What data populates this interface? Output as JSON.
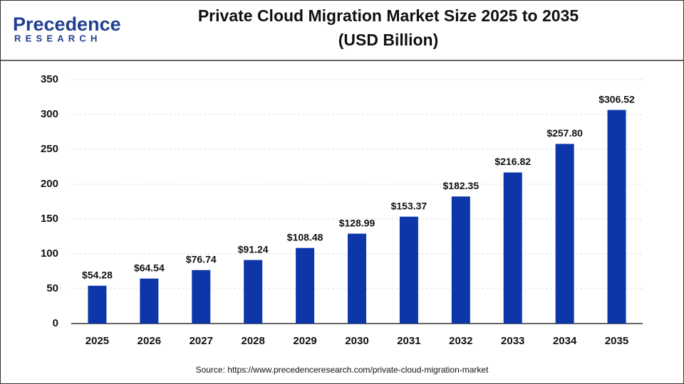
{
  "logo": {
    "name": "Precedence",
    "tagline": "RESEARCH"
  },
  "chart_data": {
    "type": "bar",
    "title": "Private Cloud Migration Market Size 2025 to 2035",
    "subtitle": "(USD Billion)",
    "categories": [
      "2025",
      "2026",
      "2027",
      "2028",
      "2029",
      "2030",
      "2031",
      "2032",
      "2033",
      "2034",
      "2035"
    ],
    "values": [
      54.28,
      64.54,
      76.74,
      91.24,
      108.48,
      128.99,
      153.37,
      182.35,
      216.82,
      257.8,
      306.52
    ],
    "value_labels": [
      "$54.28",
      "$64.54",
      "$76.74",
      "$91.24",
      "$108.48",
      "$128.99",
      "$153.37",
      "$182.35",
      "$216.82",
      "$257.80",
      "$306.52"
    ],
    "color": "#0d37a8",
    "ylim": [
      0,
      350
    ],
    "yticks": [
      0,
      50,
      100,
      150,
      200,
      250,
      300,
      350
    ],
    "grid": true,
    "source": "Source: https://www.precedenceresearch.com/private-cloud-migration-market"
  }
}
